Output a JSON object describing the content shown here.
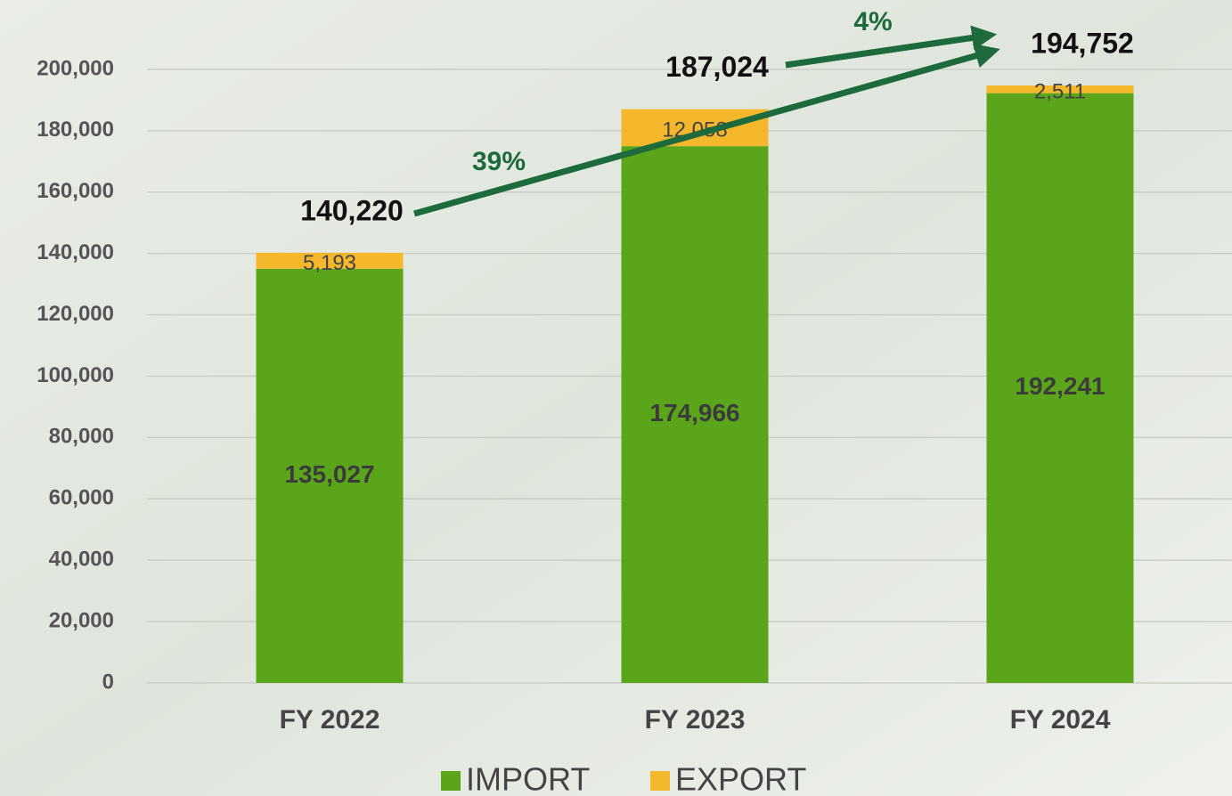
{
  "chart_data": {
    "type": "stacked_bar",
    "categories": [
      "FY 2022",
      "FY 2023",
      "FY 2024"
    ],
    "series": [
      {
        "name": "IMPORT",
        "color": "#5aa51a",
        "values": [
          135027,
          174966,
          192241
        ],
        "value_labels": [
          "135,027",
          "174,966",
          "192,241"
        ]
      },
      {
        "name": "EXPORT",
        "color": "#f5b72b",
        "values": [
          5193,
          12058,
          2511
        ],
        "value_labels": [
          "5,193",
          "12,058",
          "2,511"
        ]
      }
    ],
    "totals": {
      "values": [
        140220,
        187024,
        194752
      ],
      "value_labels": [
        "140,220",
        "187,024",
        "194,752"
      ]
    },
    "annotations": [
      "39%",
      "4%"
    ],
    "ylim": [
      0,
      220000
    ],
    "yticks": [
      0,
      {
        "value": 20000,
        "label": "20,000"
      },
      {
        "value": 40000,
        "label": "40,000"
      },
      {
        "value": 60000,
        "label": "60,000"
      },
      {
        "value": 80000,
        "label": "80,000"
      },
      {
        "value": 100000,
        "label": "100,000"
      },
      {
        "value": 120000,
        "label": "120,000"
      },
      {
        "value": 140000,
        "label": "140,000"
      },
      {
        "value": 160000,
        "label": "160,000"
      },
      {
        "value": 180000,
        "label": "180,000"
      },
      {
        "value": 200000,
        "label": "200,000"
      }
    ],
    "grid": true,
    "legend": "bottom"
  }
}
